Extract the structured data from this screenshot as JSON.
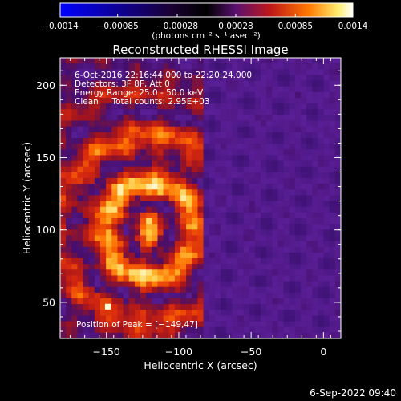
{
  "chart_data": {
    "type": "heatmap",
    "title": "Reconstructed RHESSI Image",
    "xlabel": "Heliocentric X (arcsec)",
    "ylabel": "Heliocentric Y (arcsec)",
    "xlim": [
      -182,
      12
    ],
    "ylim": [
      25,
      219
    ],
    "x_ticks": [
      -150,
      -100,
      -50,
      0
    ],
    "x_tick_labels": [
      "−150",
      "−100",
      "−50",
      "0"
    ],
    "y_ticks": [
      50,
      100,
      150,
      200
    ],
    "y_tick_labels": [
      "50",
      "100",
      "150",
      "200"
    ],
    "colorbar": {
      "min": -0.0014,
      "max": 0.0014,
      "ticks": [
        -0.0014,
        -0.00085,
        -0.00028,
        0.00028,
        0.00085,
        0.0014
      ],
      "tick_labels": [
        "−0.0014",
        "−0.00085",
        "−0.00028",
        "0.00028",
        "0.00085",
        "0.0014"
      ],
      "unit_label": "(photons cm⁻² s⁻¹ asec⁻²)",
      "colormap": [
        "#0000ff",
        "#3c0064",
        "#000000",
        "#2a1060",
        "#7a2aa0",
        "#c01818",
        "#ff5000",
        "#ffb000",
        "#ffff80",
        "#ffffff"
      ]
    },
    "annotations": [
      "6-Oct-2016 22:16:44.000 to 22:20:24.000",
      "Detectors: 3F 8F, Att 0",
      "Energy Range: 25.0 - 50.0 keV",
      "Clean     Total counts: 2.95E+03"
    ],
    "peak_label": "Position of Peak = [−149,47]",
    "peak_position": [
      -149,
      47
    ],
    "image_grid": {
      "nx": 49,
      "ny": 49,
      "pattern_center": [
        -120,
        100
      ],
      "peak_value_fraction": 1.0
    }
  },
  "footer": {
    "timestamp": "6-Sep-2022 09:40"
  }
}
